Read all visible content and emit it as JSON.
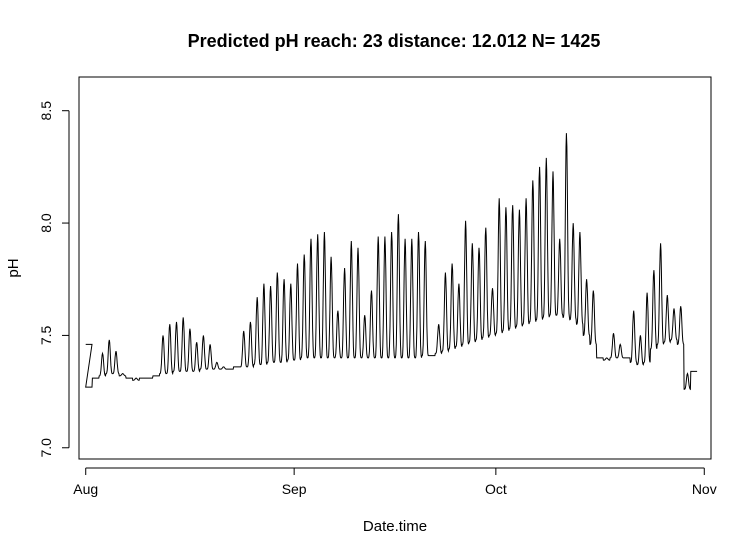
{
  "chart_data": {
    "type": "line",
    "title": "Predicted pH  reach: 23  distance: 12.012 N= 1425",
    "xlabel": "Date.time",
    "ylabel": "pH",
    "x_ticks": [
      "Aug",
      "Sep",
      "Oct",
      "Nov"
    ],
    "y_ticks": [
      "7.0",
      "7.5",
      "8.0",
      "8.5"
    ],
    "xlim": [
      "2000-07-31",
      "2000-11-02"
    ],
    "ylim": [
      6.95,
      8.65
    ],
    "grid": false,
    "legend": "none",
    "colors": {
      "line": "#000000",
      "frame": "#000000",
      "background": "#ffffff"
    },
    "series": [
      {
        "x": [
          "2000-08-01",
          "2000-08-01",
          "2000-08-02",
          "2000-08-03",
          "2000-08-04",
          "2000-08-05",
          "2000-08-06",
          "2000-08-07",
          "2000-08-08",
          "2000-08-09",
          "2000-08-10",
          "2000-08-11",
          "2000-08-12",
          "2000-08-13",
          "2000-08-14",
          "2000-08-15",
          "2000-08-16",
          "2000-08-17",
          "2000-08-18",
          "2000-08-19",
          "2000-08-20",
          "2000-08-21",
          "2000-08-22",
          "2000-08-23",
          "2000-08-24",
          "2000-08-25",
          "2000-08-26",
          "2000-08-27",
          "2000-08-28",
          "2000-08-29",
          "2000-08-30",
          "2000-08-31",
          "2000-09-01",
          "2000-09-02",
          "2000-09-03",
          "2000-09-04",
          "2000-09-05",
          "2000-09-06",
          "2000-09-07",
          "2000-09-08",
          "2000-09-09",
          "2000-09-10",
          "2000-09-11",
          "2000-09-12",
          "2000-09-13",
          "2000-09-14",
          "2000-09-15",
          "2000-09-16",
          "2000-09-17",
          "2000-09-18",
          "2000-09-19",
          "2000-09-20",
          "2000-09-21",
          "2000-09-22",
          "2000-09-23",
          "2000-09-24",
          "2000-09-25",
          "2000-09-26",
          "2000-09-27",
          "2000-09-28",
          "2000-09-29",
          "2000-09-30",
          "2000-10-01",
          "2000-10-02",
          "2000-10-03",
          "2000-10-04",
          "2000-10-05",
          "2000-10-06",
          "2000-10-07",
          "2000-10-08",
          "2000-10-09",
          "2000-10-10",
          "2000-10-11",
          "2000-10-12",
          "2000-10-13",
          "2000-10-14",
          "2000-10-15",
          "2000-10-16",
          "2000-10-17",
          "2000-10-18",
          "2000-10-19",
          "2000-10-20",
          "2000-10-21",
          "2000-10-22",
          "2000-10-23",
          "2000-10-24",
          "2000-10-25",
          "2000-10-26",
          "2000-10-27",
          "2000-10-28",
          "2000-10-29",
          "2000-10-30"
        ],
        "base": [
          7.46,
          7.27,
          7.31,
          7.32,
          7.33,
          7.33,
          7.32,
          7.31,
          7.3,
          7.31,
          7.31,
          7.32,
          7.33,
          7.33,
          7.34,
          7.34,
          7.34,
          7.34,
          7.35,
          7.35,
          7.35,
          7.35,
          7.35,
          7.36,
          7.36,
          7.36,
          7.37,
          7.37,
          7.38,
          7.38,
          7.38,
          7.39,
          7.39,
          7.4,
          7.4,
          7.4,
          7.4,
          7.4,
          7.4,
          7.4,
          7.4,
          7.4,
          7.4,
          7.4,
          7.4,
          7.4,
          7.4,
          7.4,
          7.4,
          7.4,
          7.4,
          7.41,
          7.41,
          7.42,
          7.43,
          7.44,
          7.45,
          7.46,
          7.47,
          7.48,
          7.49,
          7.5,
          7.51,
          7.52,
          7.53,
          7.54,
          7.55,
          7.56,
          7.57,
          7.58,
          7.59,
          7.59,
          7.58,
          7.57,
          7.55,
          7.5,
          7.46,
          7.4,
          7.39,
          7.4,
          7.4,
          7.4,
          7.38,
          7.37,
          7.38,
          7.44,
          7.46,
          7.47,
          7.48,
          7.46,
          7.26,
          7.34
        ],
        "peak": [
          7.46,
          7.27,
          7.31,
          7.42,
          7.48,
          7.43,
          7.33,
          7.31,
          7.31,
          7.31,
          7.31,
          7.32,
          7.5,
          7.55,
          7.56,
          7.58,
          7.53,
          7.47,
          7.5,
          7.46,
          7.38,
          7.36,
          7.35,
          7.36,
          7.52,
          7.56,
          7.67,
          7.73,
          7.72,
          7.78,
          7.75,
          7.73,
          7.82,
          7.86,
          7.93,
          7.95,
          7.96,
          7.85,
          7.61,
          7.8,
          7.92,
          7.89,
          7.59,
          7.7,
          7.94,
          7.94,
          7.96,
          8.04,
          7.93,
          7.93,
          7.96,
          7.92,
          7.41,
          7.55,
          7.78,
          7.82,
          7.73,
          8.01,
          7.91,
          7.89,
          7.98,
          7.71,
          8.11,
          8.07,
          8.08,
          8.06,
          8.11,
          8.19,
          8.25,
          8.29,
          8.23,
          7.93,
          8.4,
          8.0,
          7.96,
          7.75,
          7.7,
          7.4,
          7.4,
          7.51,
          7.46,
          7.4,
          7.61,
          7.5,
          7.69,
          7.79,
          7.91,
          7.68,
          7.62,
          7.63,
          7.33,
          7.34
        ]
      }
    ]
  }
}
